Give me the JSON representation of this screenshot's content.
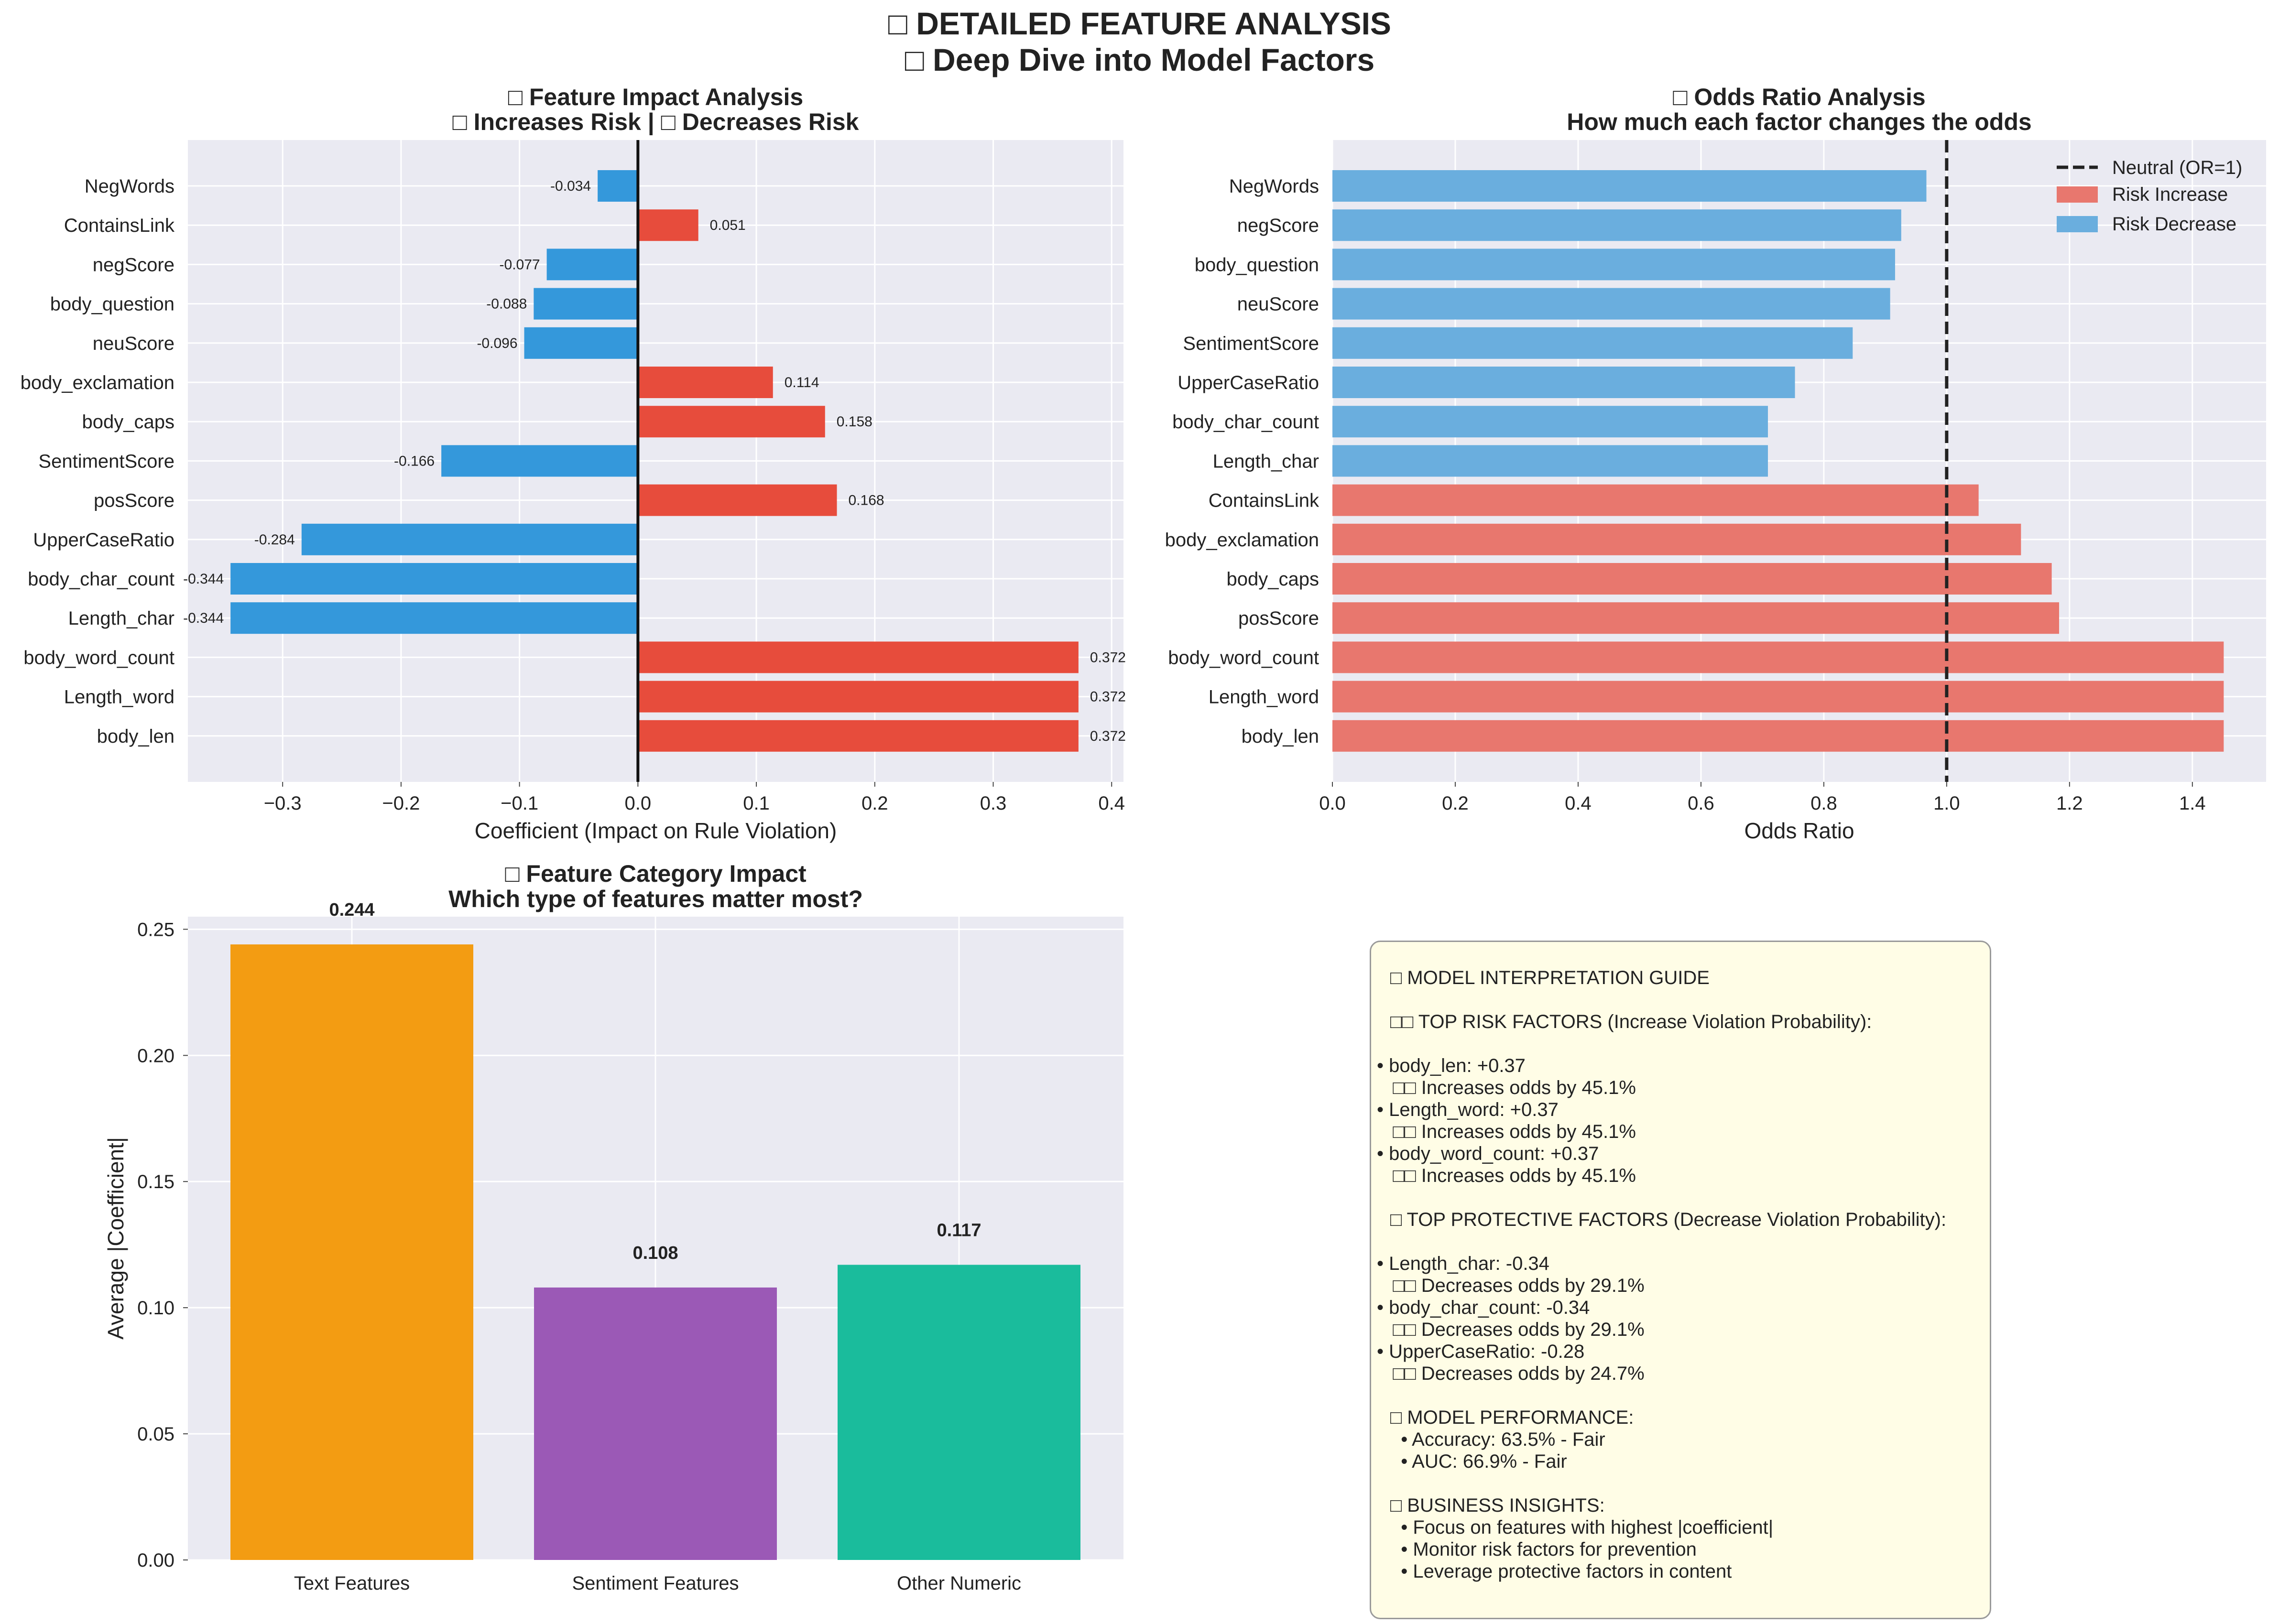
{
  "suptitle": [
    "□ DETAILED FEATURE ANALYSIS",
    "□ Deep Dive into Model Factors"
  ],
  "colors": {
    "risk": "#e74c3c",
    "protect": "#3498db",
    "risk_light": "#e8776e",
    "protect_light": "#6aaede",
    "plot_bg": "#eaeaf2",
    "guide_bg": "#fffde6",
    "text_features": "#f39c12",
    "sentiment_features": "#9b59b6",
    "other_numeric": "#1abc9c"
  },
  "chart_data": [
    {
      "type": "bar",
      "orientation": "horizontal",
      "title": [
        "□ Feature Impact Analysis",
        "□ Increases Risk | □ Decreases Risk"
      ],
      "xlabel": "Coefficient (Impact on Rule Violation)",
      "ylabel": "",
      "xlim": [
        -0.38,
        0.41
      ],
      "xticks": [
        -0.3,
        -0.2,
        -0.1,
        0.0,
        0.1,
        0.2,
        0.3,
        0.4
      ],
      "xtick_labels": [
        "−0.3",
        "−0.2",
        "−0.1",
        "0.0",
        "0.1",
        "0.2",
        "0.3",
        "0.4"
      ],
      "grid": true,
      "categories": [
        "NegWords",
        "ContainsLink",
        "negScore",
        "body_question",
        "neuScore",
        "body_exclamation",
        "body_caps",
        "SentimentScore",
        "posScore",
        "UpperCaseRatio",
        "body_char_count",
        "Length_char",
        "body_word_count",
        "Length_word",
        "body_len"
      ],
      "values": [
        -0.034,
        0.051,
        -0.077,
        -0.088,
        -0.096,
        0.114,
        0.158,
        -0.166,
        0.168,
        -0.284,
        -0.344,
        -0.344,
        0.372,
        0.372,
        0.372
      ],
      "value_labels": [
        "-0.034",
        "0.051",
        "-0.077",
        "-0.088",
        "-0.096",
        "0.114",
        "0.158",
        "-0.166",
        "0.168",
        "-0.284",
        "-0.344",
        "-0.344",
        "0.372",
        "0.372",
        "0.372"
      ]
    },
    {
      "type": "bar",
      "orientation": "horizontal",
      "title": [
        "□ Odds Ratio Analysis",
        "How much each factor changes the odds"
      ],
      "xlabel": "Odds Ratio",
      "ylabel": "",
      "xlim": [
        0.0,
        1.52
      ],
      "xticks": [
        0.0,
        0.2,
        0.4,
        0.6,
        0.8,
        1.0,
        1.2,
        1.4
      ],
      "xtick_labels": [
        "0.0",
        "0.2",
        "0.4",
        "0.6",
        "0.8",
        "1.0",
        "1.2",
        "1.4"
      ],
      "grid": true,
      "reference_line": {
        "x": 1.0,
        "label": "Neutral (OR=1)"
      },
      "legend": {
        "position": "top-right",
        "entries": [
          "Neutral (OR=1)",
          "Risk Increase",
          "Risk Decrease"
        ]
      },
      "categories": [
        "NegWords",
        "negScore",
        "body_question",
        "neuScore",
        "SentimentScore",
        "UpperCaseRatio",
        "body_char_count",
        "Length_char",
        "ContainsLink",
        "body_exclamation",
        "body_caps",
        "posScore",
        "body_word_count",
        "Length_word",
        "body_len"
      ],
      "values": [
        0.967,
        0.926,
        0.916,
        0.908,
        0.847,
        0.753,
        0.709,
        0.709,
        1.052,
        1.121,
        1.171,
        1.183,
        1.451,
        1.451,
        1.451
      ]
    },
    {
      "type": "bar",
      "title": [
        "□ Feature Category Impact",
        "Which type of features matter most?"
      ],
      "xlabel": "",
      "ylabel": "Average |Coefficient|",
      "ylim": [
        0.0,
        0.255
      ],
      "yticks": [
        0.0,
        0.05,
        0.1,
        0.15,
        0.2,
        0.25
      ],
      "ytick_labels": [
        "0.00",
        "0.05",
        "0.10",
        "0.15",
        "0.20",
        "0.25"
      ],
      "grid": true,
      "categories": [
        "Text Features",
        "Sentiment Features",
        "Other Numeric"
      ],
      "values": [
        0.244,
        0.108,
        0.117
      ],
      "value_labels": [
        "0.244",
        "0.108",
        "0.117"
      ]
    }
  ],
  "guide": {
    "title": "□ MODEL INTERPRETATION GUIDE",
    "risk_header": "□□ TOP RISK FACTORS (Increase Violation Probability):",
    "risk_lines": [
      "• body_len: +0.37",
      "   □□ Increases odds by 45.1%",
      "• Length_word: +0.37",
      "   □□ Increases odds by 45.1%",
      "• body_word_count: +0.37",
      "   □□ Increases odds by 45.1%"
    ],
    "protect_header": "□ TOP PROTECTIVE FACTORS (Decrease Violation Probability):",
    "protect_lines": [
      "• Length_char: -0.34",
      "   □□ Decreases odds by 29.1%",
      "• body_char_count: -0.34",
      "   □□ Decreases odds by 29.1%",
      "• UpperCaseRatio: -0.28",
      "   □□ Decreases odds by 24.7%"
    ],
    "perf_header": "□ MODEL PERFORMANCE:",
    "perf_lines": [
      "  • Accuracy: 63.5% - Fair",
      "  • AUC: 66.9% - Fair"
    ],
    "biz_header": "□ BUSINESS INSIGHTS:",
    "biz_lines": [
      "  • Focus on features with highest |coefficient|",
      "  • Monitor risk factors for prevention",
      "  • Leverage protective factors in content"
    ]
  }
}
